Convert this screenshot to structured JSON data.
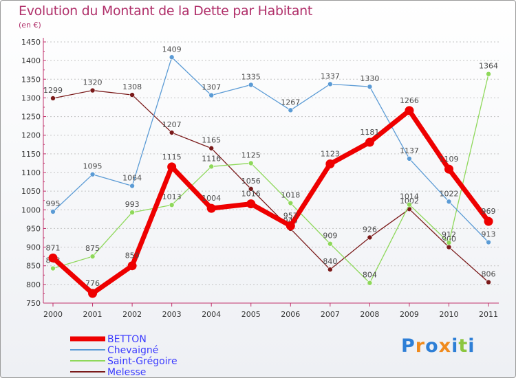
{
  "chart_data": {
    "type": "line",
    "title": "Evolution du Montant de la Dette par Habitant",
    "subtitle": "(en €)",
    "categories": [
      "2000",
      "2001",
      "2002",
      "2003",
      "2004",
      "2005",
      "2006",
      "2007",
      "2008",
      "2009",
      "2010",
      "2011"
    ],
    "ylim": [
      750,
      1450
    ],
    "yticks": [
      750,
      800,
      850,
      900,
      950,
      1000,
      1050,
      1100,
      1150,
      1200,
      1250,
      1300,
      1350,
      1400,
      1450
    ],
    "grid": "y-dashed",
    "legend_position": "bottom-left",
    "series": [
      {
        "name": "Melesse",
        "color": "#7a1a1a",
        "highlight": false,
        "values": [
          1299,
          1320,
          1308,
          1207,
          1165,
          1056,
          949,
          840,
          926,
          1002,
          900,
          806
        ]
      },
      {
        "name": "Saint-Grégoire",
        "color": "#8ed85a",
        "highlight": false,
        "values": [
          843,
          875,
          993,
          1013,
          1116,
          1125,
          1018,
          909,
          804,
          1014,
          912,
          1364
        ]
      },
      {
        "name": "Chevaigné",
        "color": "#5b9bd5",
        "highlight": false,
        "values": [
          995,
          1095,
          1064,
          1409,
          1307,
          1335,
          1267,
          1337,
          1330,
          1137,
          1022,
          913
        ]
      },
      {
        "name": "BETTON",
        "color": "#ee0000",
        "highlight": true,
        "values": [
          871,
          776,
          850,
          1115,
          1004,
          1016,
          957,
          1123,
          1181,
          1266,
          1109,
          969
        ]
      }
    ],
    "legend": [
      "BETTON",
      "Chevaigné",
      "Saint-Grégoire",
      "Melesse"
    ]
  },
  "branding": {
    "letters": [
      "P",
      "r",
      "o",
      "x",
      "i",
      "t",
      "i"
    ],
    "colors": [
      "#2e7fd6",
      "#f08a1c",
      "#2e7fd6",
      "#f08a1c",
      "#2e7fd6",
      "#8cc63f",
      "#2e7fd6"
    ]
  }
}
